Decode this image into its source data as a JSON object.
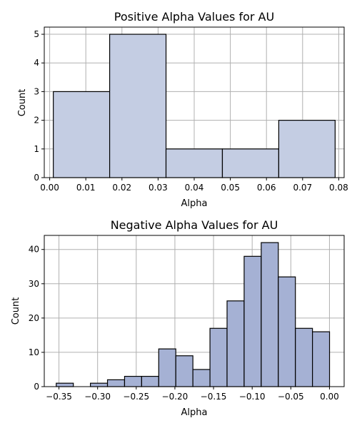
{
  "chart_data": [
    {
      "type": "bar",
      "title": "Positive Alpha Values for AU",
      "xlabel": "Alpha",
      "ylabel": "Count",
      "xlim": [
        -0.0015,
        0.0815
      ],
      "ylim": [
        0,
        5.25
      ],
      "xticks": [
        0.0,
        0.01,
        0.02,
        0.03,
        0.04,
        0.05,
        0.06,
        0.07,
        0.08
      ],
      "xtick_labels": [
        "0.00",
        "0.01",
        "0.02",
        "0.03",
        "0.04",
        "0.05",
        "0.06",
        "0.07",
        "0.08"
      ],
      "yticks": [
        0,
        1,
        2,
        3,
        4,
        5
      ],
      "ytick_labels": [
        "0",
        "1",
        "2",
        "3",
        "4",
        "5"
      ],
      "grid": true,
      "bar_color": "#c4cde3",
      "bins": [
        {
          "x0": 0.001,
          "x1": 0.0166,
          "count": 3
        },
        {
          "x0": 0.0166,
          "x1": 0.0322,
          "count": 5
        },
        {
          "x0": 0.0322,
          "x1": 0.0478,
          "count": 1
        },
        {
          "x0": 0.0478,
          "x1": 0.0634,
          "count": 1
        },
        {
          "x0": 0.0634,
          "x1": 0.079,
          "count": 2
        }
      ]
    },
    {
      "type": "bar",
      "title": "Negative Alpha Values for AU",
      "xlabel": "Alpha",
      "ylabel": "Count",
      "xlim": [
        -0.369,
        0.019
      ],
      "ylim": [
        0,
        44.1
      ],
      "xticks": [
        -0.35,
        -0.3,
        -0.25,
        -0.2,
        -0.15,
        -0.1,
        -0.05,
        0.0
      ],
      "xtick_labels": [
        "−0.35",
        "−0.30",
        "−0.25",
        "−0.20",
        "−0.15",
        "−0.10",
        "−0.05",
        "0.00"
      ],
      "yticks": [
        0,
        10,
        20,
        30,
        40
      ],
      "ytick_labels": [
        "0",
        "10",
        "20",
        "30",
        "40"
      ],
      "grid": true,
      "bar_color": "#a5b1d4",
      "bin_start": -0.3535,
      "bin_width": 0.0221,
      "counts": [
        1,
        0,
        1,
        2,
        3,
        3,
        11,
        9,
        5,
        17,
        25,
        38,
        42,
        32,
        17,
        16
      ]
    }
  ]
}
